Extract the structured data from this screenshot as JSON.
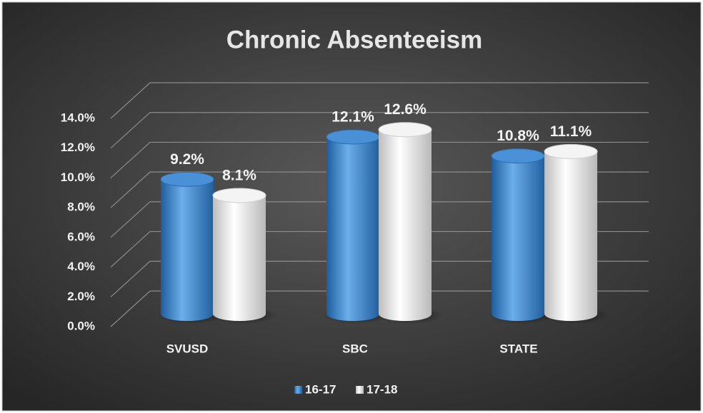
{
  "chart_data": {
    "type": "bar",
    "title": "Chronic Absenteeism",
    "categories": [
      "SVUSD",
      "SBC",
      "STATE"
    ],
    "series": [
      {
        "name": "16-17",
        "color": "#3b82cc",
        "values": [
          9.2,
          12.1,
          10.8
        ],
        "value_labels": [
          "9.2%",
          "12.1%",
          "10.8%"
        ]
      },
      {
        "name": "17-18",
        "color": "#ffffff",
        "values": [
          8.1,
          12.6,
          11.1
        ],
        "value_labels": [
          "8.1%",
          "12.6%",
          "11.1%"
        ]
      }
    ],
    "ylim": [
      0,
      14
    ],
    "yticks": [
      {
        "value": 0,
        "label": "0.0%"
      },
      {
        "value": 2,
        "label": "2.0%"
      },
      {
        "value": 4,
        "label": "4.0%"
      },
      {
        "value": 6,
        "label": "6.0%"
      },
      {
        "value": 8,
        "label": "8.0%"
      },
      {
        "value": 10,
        "label": "10.0%"
      },
      {
        "value": 12,
        "label": "12.0%"
      },
      {
        "value": 14,
        "label": "14.0%"
      }
    ],
    "grid": true,
    "legend": "bottom"
  }
}
